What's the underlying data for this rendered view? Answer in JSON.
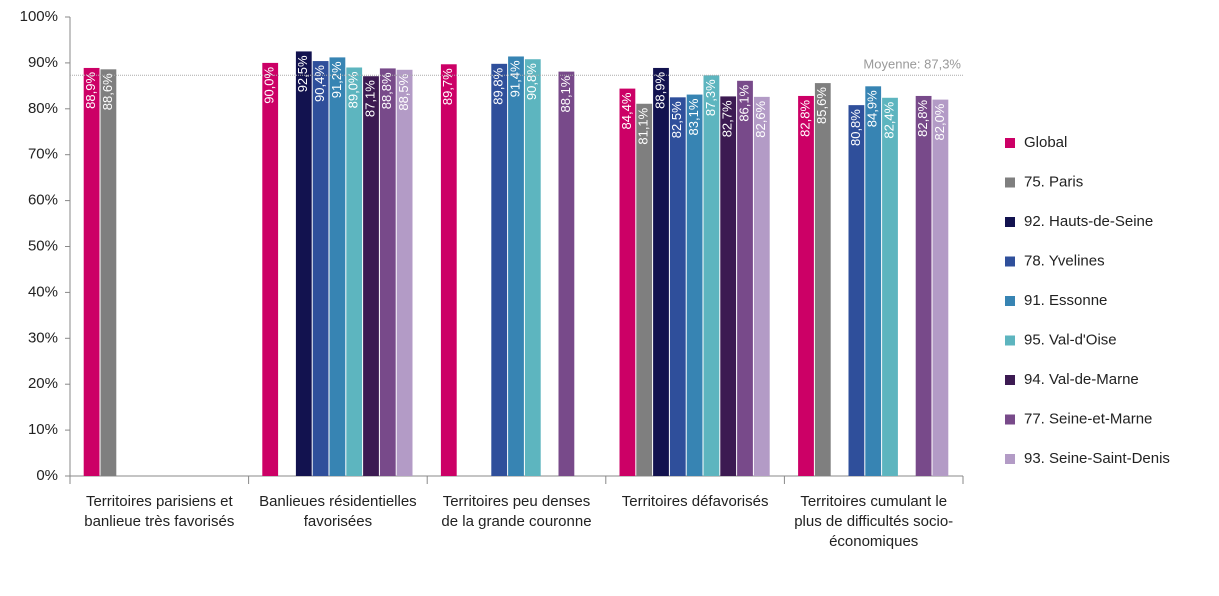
{
  "chart_data": {
    "type": "bar",
    "categories": [
      "Territoires parisiens et banlieue très favorisés",
      "Banlieues résidentielles favorisées",
      "Territoires peu denses de la grande couronne",
      "Territoires défavorisés",
      "Territoires cumulant le plus de difficultés socio-économiques"
    ],
    "series": [
      {
        "name": "Global",
        "color": "#cc0066",
        "values": [
          88.9,
          90.0,
          89.7,
          84.4,
          82.8
        ],
        "value_labels": [
          "88,9%",
          "90,0%",
          "89,7%",
          "84,4%",
          "82,8%"
        ]
      },
      {
        "name": "75. Paris",
        "color": "#7f7f7f",
        "values": [
          88.6,
          null,
          null,
          81.1,
          85.6
        ],
        "value_labels": [
          "88,6%",
          null,
          null,
          "81,1%",
          "85,6%"
        ]
      },
      {
        "name": "92. Hauts-de-Seine",
        "color": "#12124f",
        "values": [
          null,
          92.5,
          null,
          88.9,
          null
        ],
        "value_labels": [
          null,
          "92,5%",
          null,
          "88,9%",
          null
        ]
      },
      {
        "name": "78. Yvelines",
        "color": "#2f4f9b",
        "values": [
          null,
          90.4,
          89.8,
          82.5,
          80.8
        ],
        "value_labels": [
          null,
          "90,4%",
          "89,8%",
          "82,5%",
          "80,8%"
        ]
      },
      {
        "name": "91. Essonne",
        "color": "#3784b3",
        "values": [
          null,
          91.2,
          91.4,
          83.1,
          84.9
        ],
        "value_labels": [
          null,
          "91,2%",
          "91,4%",
          "83,1%",
          "84,9%"
        ]
      },
      {
        "name": "95. Val-d'Oise",
        "color": "#5db5bf",
        "values": [
          null,
          89.0,
          90.8,
          87.3,
          82.4
        ],
        "value_labels": [
          null,
          "89,0%",
          "90,8%",
          "87,3%",
          "82,4%"
        ]
      },
      {
        "name": "94. Val-de-Marne",
        "color": "#3c1a52",
        "values": [
          null,
          87.1,
          null,
          82.7,
          null
        ],
        "value_labels": [
          null,
          "87,1%",
          null,
          "82,7%",
          null
        ]
      },
      {
        "name": "77. Seine-et-Marne",
        "color": "#784a8a",
        "values": [
          null,
          88.8,
          88.1,
          86.1,
          82.8
        ],
        "value_labels": [
          null,
          "88,8%",
          "88,1%",
          "86,1%",
          "82,8%"
        ]
      },
      {
        "name": "93. Seine-Saint-Denis",
        "color": "#b39bc6",
        "values": [
          null,
          88.5,
          null,
          82.6,
          82.0
        ],
        "value_labels": [
          null,
          "88,5%",
          null,
          "82,6%",
          "82,0%"
        ]
      }
    ],
    "reference_line": {
      "value": 87.3,
      "label": "Moyenne: 87,3%"
    },
    "ylim": [
      0,
      100
    ],
    "yticks": [
      {
        "value": 0,
        "label": "0%"
      },
      {
        "value": 10,
        "label": "10%"
      },
      {
        "value": 20,
        "label": "20%"
      },
      {
        "value": 30,
        "label": "30%"
      },
      {
        "value": 40,
        "label": "40%"
      },
      {
        "value": 50,
        "label": "50%"
      },
      {
        "value": 60,
        "label": "60%"
      },
      {
        "value": 70,
        "label": "70%"
      },
      {
        "value": 80,
        "label": "80%"
      },
      {
        "value": 90,
        "label": "90%"
      },
      {
        "value": 100,
        "label": "100%"
      }
    ],
    "grid": false,
    "legend": "right"
  }
}
